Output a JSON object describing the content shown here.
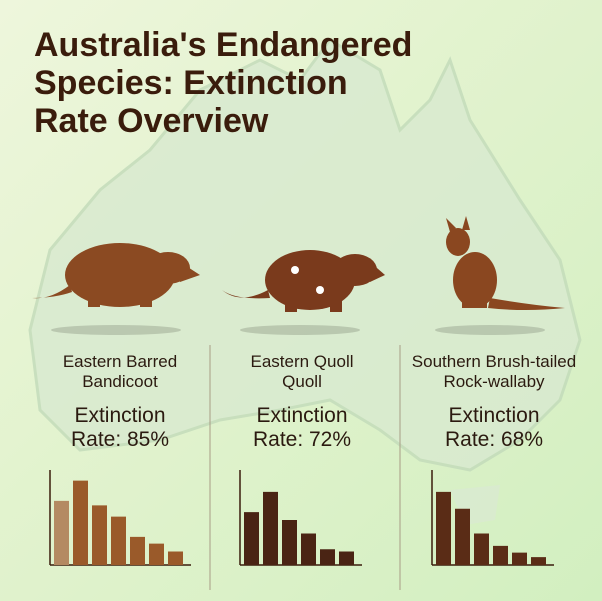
{
  "title": "Australia's Endangered Species: Extinction Rate Overview",
  "chart_data": [
    {
      "type": "bar",
      "title": "Eastern Barred Bandicoot",
      "subtitle": "Extinction Rate: 85%",
      "values": [
        57,
        75,
        53,
        43,
        25,
        19,
        12
      ],
      "colors": [
        "#b48a62",
        "#9a5a2a",
        "#9a5a2a",
        "#9a5a2a",
        "#9a5a2a",
        "#9a5a2a",
        "#9a5a2a"
      ],
      "ylim": [
        0,
        80
      ]
    },
    {
      "type": "bar",
      "title": "Eastern Quoll Quoll",
      "subtitle": "Extinction Rate: 72%",
      "values": [
        47,
        65,
        40,
        28,
        14,
        12
      ],
      "colors": [
        "#4a2414",
        "#4a2414",
        "#4a2414",
        "#4a2414",
        "#4a2414",
        "#4a2414"
      ],
      "ylim": [
        0,
        80
      ]
    },
    {
      "type": "bar",
      "title": "Southern Brush-tailed Rock-wallaby",
      "subtitle": "Extinction Rate: 68%",
      "values": [
        65,
        50,
        28,
        17,
        11,
        7
      ],
      "colors": [
        "#5a2c16",
        "#5a2c16",
        "#5a2c16",
        "#5a2c16",
        "#5a2c16",
        "#5a2c16"
      ],
      "ylim": [
        0,
        80
      ]
    }
  ]
}
